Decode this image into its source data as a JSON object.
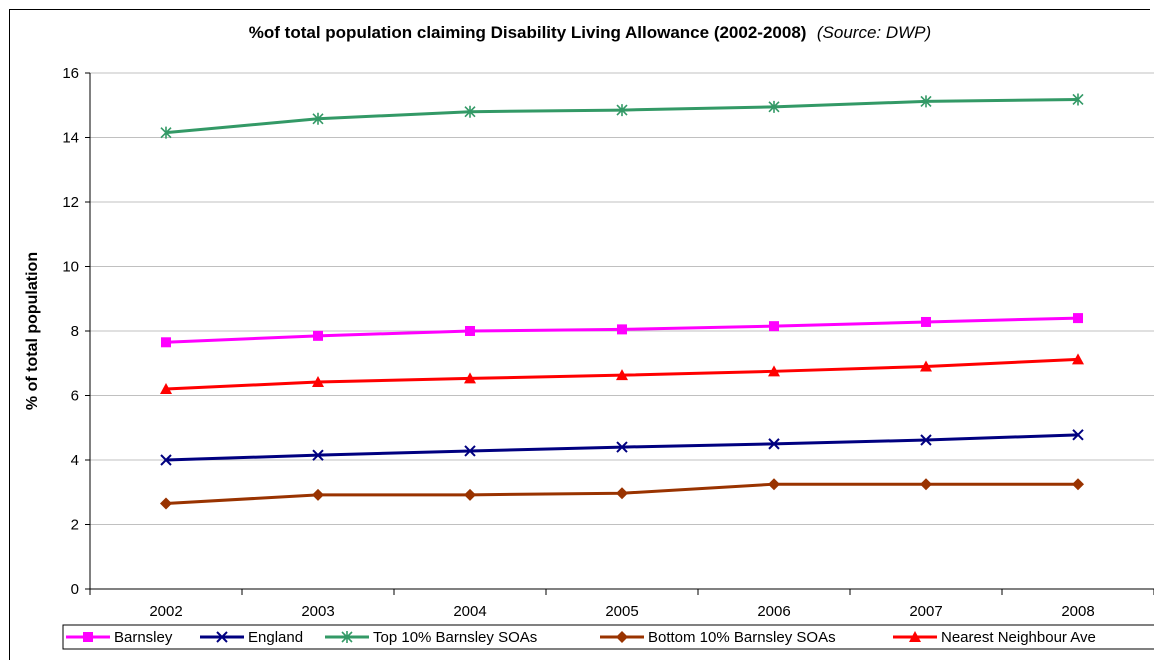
{
  "chart_data": {
    "type": "line",
    "title": "%of total population claiming Disability Living Allowance (2002-2008)",
    "subtitle": "(Source: DWP)",
    "xlabel": "",
    "ylabel": "% of total population",
    "categories": [
      "2002",
      "2003",
      "2004",
      "2005",
      "2006",
      "2007",
      "2008"
    ],
    "ylim": [
      0,
      16
    ],
    "yticks": [
      "0",
      "2",
      "4",
      "6",
      "8",
      "10",
      "12",
      "14",
      "16"
    ],
    "grid": true,
    "legend_position": "bottom",
    "series": [
      {
        "name": "Barnsley",
        "color": "#ff00ff",
        "marker": "square",
        "values": [
          7.65,
          7.85,
          8.0,
          8.05,
          8.15,
          8.28,
          8.4
        ]
      },
      {
        "name": "England",
        "color": "#000080",
        "marker": "x",
        "values": [
          4.0,
          4.15,
          4.28,
          4.4,
          4.5,
          4.62,
          4.78
        ]
      },
      {
        "name": "Top 10% Barnsley SOAs",
        "color": "#339966",
        "marker": "asterisk",
        "values": [
          14.15,
          14.58,
          14.8,
          14.85,
          14.95,
          15.12,
          15.18
        ]
      },
      {
        "name": "Bottom 10% Barnsley SOAs",
        "color": "#993300",
        "marker": "diamond",
        "values": [
          2.65,
          2.92,
          2.92,
          2.97,
          3.25,
          3.25,
          3.25
        ]
      },
      {
        "name": "Nearest Neighbour Ave",
        "color": "#ff0000",
        "marker": "triangle",
        "values": [
          6.2,
          6.42,
          6.53,
          6.63,
          6.75,
          6.9,
          7.12
        ]
      }
    ]
  }
}
